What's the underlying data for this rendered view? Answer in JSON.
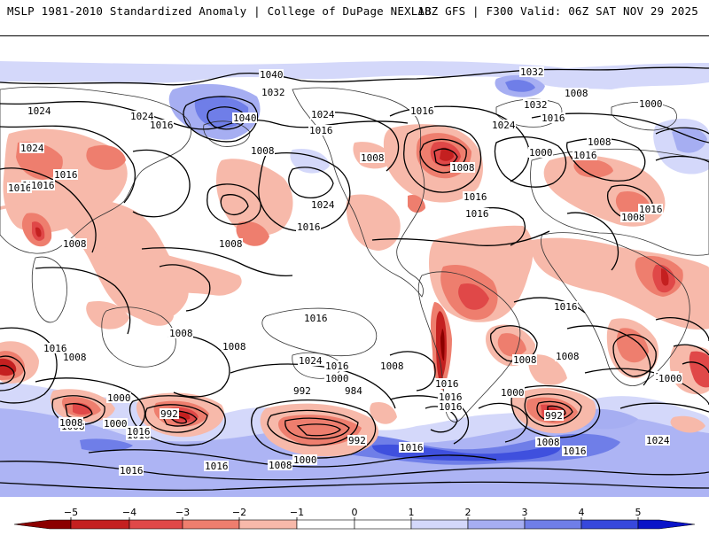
{
  "header": {
    "left": "MSLP 1981-2010 Standardized Anomaly | College of DuPage NEXLAB",
    "right": "18Z GFS | F300 Valid: 06Z SAT NOV 29 2025"
  },
  "map": {
    "field": "Mean sea level pressure standardized anomaly",
    "colors": {
      "neg5": "#8b0000",
      "neg4": "#c42020",
      "neg3": "#e04848",
      "neg2": "#ee7e6e",
      "neg1": "#f7b9aa",
      "zero": "#ffffff",
      "pos1": "#d4d8fa",
      "pos2": "#a6aef2",
      "pos3": "#6f7ee8",
      "pos4": "#3748dc",
      "pos5": "#0a14c8",
      "coast": "#333333",
      "isobar": "#000000"
    },
    "isobar_labels": [
      "1040",
      "1032",
      "1024",
      "1024",
      "1016",
      "1040",
      "1024",
      "1016",
      "1016",
      "1008",
      "1024",
      "1024",
      "1016",
      "1008",
      "1008",
      "1016",
      "1008",
      "1016",
      "1008",
      "1016",
      "1016",
      "1024",
      "1016",
      "1032",
      "1032",
      "1008",
      "1024",
      "1016",
      "1008",
      "1000",
      "1000",
      "1016",
      "1008",
      "1016",
      "1016",
      "1008",
      "1016",
      "1016",
      "1000",
      "1008",
      "1008",
      "1016",
      "1016",
      "1008",
      "1016",
      "1024",
      "1016",
      "1008",
      "1000",
      "992",
      "984",
      "992",
      "1000",
      "1008",
      "1008",
      "1016",
      "1008",
      "1000",
      "992",
      "1016",
      "1016",
      "1008",
      "1000",
      "1016",
      "1016",
      "1000",
      "992",
      "1008",
      "1016",
      "1024",
      "1000",
      "1016"
    ]
  },
  "colorbar": {
    "ticks": [
      "−5",
      "−4",
      "−3",
      "−2",
      "−1",
      "0",
      "1",
      "2",
      "3",
      "4",
      "5"
    ],
    "colors": [
      "#8b0000",
      "#c42020",
      "#e04848",
      "#ee7e6e",
      "#f7b9aa",
      "#ffffff",
      "#ffffff",
      "#d4d8fa",
      "#a6aef2",
      "#6f7ee8",
      "#3748dc",
      "#0a14c8"
    ]
  }
}
